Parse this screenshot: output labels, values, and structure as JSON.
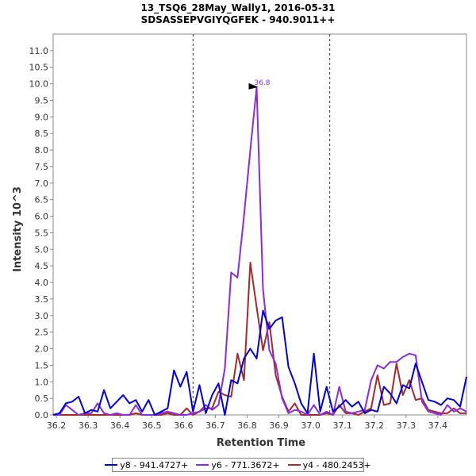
{
  "chart_data": {
    "type": "line",
    "title": "13_TSQ6_28May_Wally1, 2016-05-31",
    "subtitle": "SDSASSEPVGIYQGFEK - 940.9011++",
    "xlabel": "Retention Time",
    "ylabel": "Intensity 10^3",
    "xlim": [
      36.19,
      37.49
    ],
    "ylim": [
      0,
      11.5
    ],
    "xticks": [
      "36.2",
      "36.3",
      "36.4",
      "36.5",
      "36.6",
      "36.7",
      "36.8",
      "36.9",
      "37.0",
      "37.1",
      "37.2",
      "37.3",
      "37.4"
    ],
    "yticks": [
      "0.0",
      "0.5",
      "1.0",
      "1.5",
      "2.0",
      "2.5",
      "3.0",
      "3.5",
      "4.0",
      "4.5",
      "5.0",
      "5.5",
      "6.0",
      "6.5",
      "7.0",
      "7.5",
      "8.0",
      "8.5",
      "9.0",
      "9.5",
      "10.0",
      "10.5",
      "11.0"
    ],
    "integration_bounds": [
      36.63,
      37.06
    ],
    "peak_annotation": {
      "x": 36.84,
      "y": 9.9,
      "label": "36.8"
    },
    "legend_position": "bottom",
    "grid": false,
    "series": [
      {
        "name": "y8 - 941.4727+",
        "color": "#0000dd",
        "x": [
          36.19,
          36.21,
          36.23,
          36.25,
          36.27,
          36.29,
          36.31,
          36.33,
          36.35,
          36.37,
          36.39,
          36.41,
          36.43,
          36.45,
          36.47,
          36.49,
          36.51,
          36.53,
          36.55,
          36.57,
          36.59,
          36.61,
          36.63,
          36.65,
          36.67,
          36.69,
          36.71,
          36.73,
          36.75,
          36.77,
          36.79,
          36.81,
          36.83,
          36.85,
          36.87,
          36.89,
          36.91,
          36.93,
          36.95,
          36.97,
          36.99,
          37.01,
          37.03,
          37.05,
          37.07,
          37.09,
          37.11,
          37.13,
          37.15,
          37.17,
          37.19,
          37.21,
          37.23,
          37.25,
          37.27,
          37.29,
          37.31,
          37.33,
          37.35,
          37.37,
          37.39,
          37.41,
          37.43,
          37.45,
          37.47,
          37.49
        ],
        "values": [
          0.0,
          0.05,
          0.35,
          0.4,
          0.55,
          0.05,
          0.15,
          0.1,
          0.75,
          0.2,
          0.4,
          0.6,
          0.35,
          0.45,
          0.1,
          0.45,
          0.0,
          0.1,
          0.2,
          1.35,
          0.85,
          1.3,
          0.1,
          0.9,
          0.05,
          0.6,
          0.95,
          0.0,
          1.05,
          0.95,
          1.7,
          2.0,
          1.7,
          3.15,
          2.6,
          2.85,
          2.95,
          1.45,
          0.95,
          0.35,
          0.05,
          1.85,
          0.1,
          0.85,
          0.1,
          0.25,
          0.45,
          0.25,
          0.4,
          0.05,
          0.15,
          0.1,
          0.85,
          0.65,
          0.35,
          0.9,
          0.8,
          1.55,
          1.0,
          0.45,
          0.4,
          0.3,
          0.5,
          0.45,
          0.25,
          1.15
        ]
      },
      {
        "name": "y6 - 771.3672+",
        "color": "#8a2be2",
        "x": [
          36.19,
          36.21,
          36.23,
          36.25,
          36.27,
          36.29,
          36.31,
          36.33,
          36.35,
          36.37,
          36.39,
          36.41,
          36.43,
          36.45,
          36.47,
          36.49,
          36.51,
          36.53,
          36.55,
          36.57,
          36.59,
          36.61,
          36.63,
          36.65,
          36.67,
          36.69,
          36.71,
          36.73,
          36.75,
          36.77,
          36.79,
          36.81,
          36.83,
          36.85,
          36.87,
          36.89,
          36.91,
          36.93,
          36.95,
          36.97,
          36.99,
          37.01,
          37.03,
          37.05,
          37.07,
          37.09,
          37.11,
          37.13,
          37.15,
          37.17,
          37.19,
          37.21,
          37.23,
          37.25,
          37.27,
          37.29,
          37.31,
          37.33,
          37.35,
          37.37,
          37.39,
          37.41,
          37.43,
          37.45,
          37.47,
          37.49
        ],
        "values": [
          0.0,
          0.0,
          0.3,
          0.15,
          0.0,
          0.05,
          0.05,
          0.35,
          0.05,
          0.0,
          0.05,
          0.0,
          0.0,
          0.3,
          0.0,
          0.0,
          0.0,
          0.05,
          0.1,
          0.05,
          0.0,
          0.0,
          0.05,
          0.1,
          0.3,
          0.15,
          0.3,
          1.4,
          4.3,
          4.15,
          6.0,
          8.0,
          9.9,
          3.8,
          1.95,
          1.55,
          0.5,
          0.05,
          0.15,
          0.1,
          0.0,
          0.3,
          0.0,
          0.1,
          0.0,
          0.85,
          0.1,
          0.05,
          0.1,
          0.15,
          1.05,
          1.5,
          1.4,
          1.6,
          1.6,
          1.75,
          1.85,
          1.8,
          0.4,
          0.1,
          0.05,
          0.0,
          0.3,
          0.1,
          0.2,
          0.1
        ]
      },
      {
        "name": "y4 - 480.2453+",
        "color": "#a52a2a",
        "x": [
          36.19,
          36.21,
          36.23,
          36.25,
          36.27,
          36.29,
          36.31,
          36.33,
          36.35,
          36.37,
          36.39,
          36.41,
          36.43,
          36.45,
          36.47,
          36.49,
          36.51,
          36.53,
          36.55,
          36.57,
          36.59,
          36.61,
          36.63,
          36.65,
          36.67,
          36.69,
          36.71,
          36.73,
          36.75,
          36.77,
          36.79,
          36.81,
          36.83,
          36.85,
          36.87,
          36.89,
          36.91,
          36.93,
          36.95,
          36.97,
          36.99,
          37.01,
          37.03,
          37.05,
          37.07,
          37.09,
          37.11,
          37.13,
          37.15,
          37.17,
          37.19,
          37.21,
          37.23,
          37.25,
          37.27,
          37.29,
          37.31,
          37.33,
          37.35,
          37.37,
          37.39,
          37.41,
          37.43,
          37.45,
          37.47,
          37.49
        ],
        "values": [
          0.0,
          0.0,
          0.0,
          0.0,
          0.0,
          0.0,
          0.0,
          0.0,
          0.0,
          0.0,
          0.0,
          0.0,
          0.0,
          0.05,
          0.0,
          0.0,
          0.0,
          0.0,
          0.05,
          0.0,
          0.0,
          0.2,
          0.0,
          0.1,
          0.2,
          0.2,
          0.7,
          0.6,
          0.55,
          1.85,
          1.05,
          4.6,
          3.25,
          1.95,
          2.8,
          1.2,
          0.55,
          0.1,
          0.35,
          0.0,
          0.0,
          0.0,
          0.0,
          0.05,
          0.0,
          0.3,
          0.05,
          0.05,
          0.0,
          0.1,
          0.2,
          1.2,
          0.3,
          0.35,
          1.55,
          0.6,
          1.05,
          0.45,
          0.5,
          0.15,
          0.1,
          0.05,
          0.05,
          0.2,
          0.05,
          0.05
        ]
      }
    ]
  }
}
